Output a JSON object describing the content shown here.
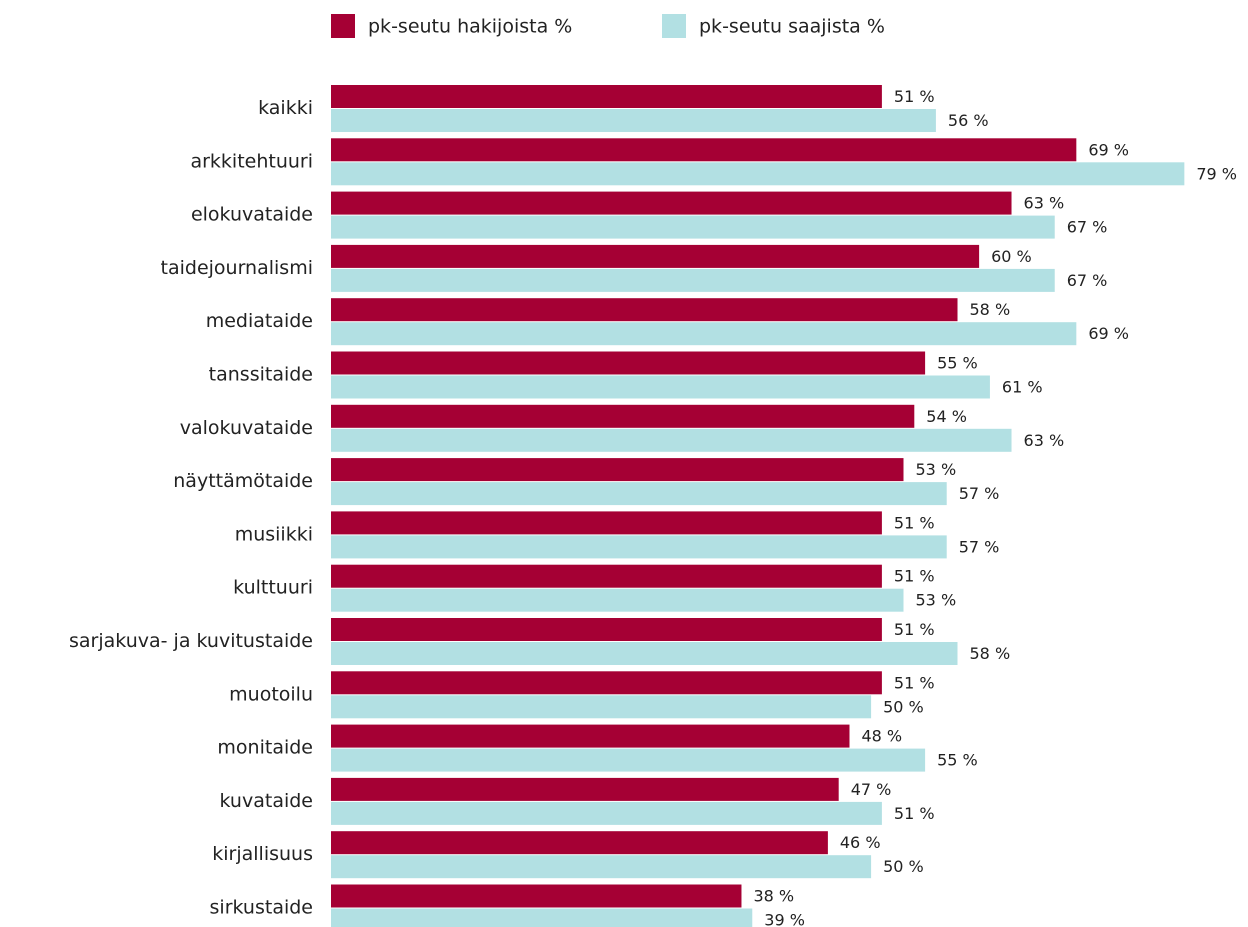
{
  "chart_data": {
    "type": "bar",
    "orientation": "horizontal",
    "categories": [
      "kaikki",
      "arkkitehtuuri",
      "elokuvataide",
      "taidejournalismi",
      "mediataide",
      "tanssitaide",
      "valokuvataide",
      "näyttämötaide",
      "musiikki",
      "kulttuuri",
      "sarjakuva- ja kuvitustaide",
      "muotoilu",
      "monitaide",
      "kuvataide",
      "kirjallisuus",
      "sirkustaide"
    ],
    "series": [
      {
        "name": "pk-seutu hakijoista %",
        "color": "#a50034",
        "values": [
          51,
          69,
          63,
          60,
          58,
          55,
          54,
          53,
          51,
          51,
          51,
          51,
          48,
          47,
          46,
          38
        ],
        "value_labels": [
          "51 %",
          "69 %",
          "63 %",
          "60 %",
          "58 %",
          "55 %",
          "54 %",
          "53 %",
          "51 %",
          "51 %",
          "51 %",
          "51 %",
          "48 %",
          "47 %",
          "46 %",
          "38 %"
        ]
      },
      {
        "name": "pk-seutu saajista %",
        "color": "#b2e0e3",
        "values": [
          56,
          79,
          67,
          67,
          69,
          61,
          63,
          57,
          57,
          53,
          58,
          50,
          55,
          51,
          50,
          39
        ],
        "value_labels": [
          "56 %",
          "79 %",
          "67 %",
          "67 %",
          "69 %",
          "61 %",
          "63 %",
          "57 %",
          "57 %",
          "53 %",
          "58 %",
          "50 %",
          "55 %",
          "51 %",
          "50 %",
          "39 %"
        ]
      }
    ],
    "xlim": [
      0,
      84.8
    ],
    "legend": "top"
  }
}
